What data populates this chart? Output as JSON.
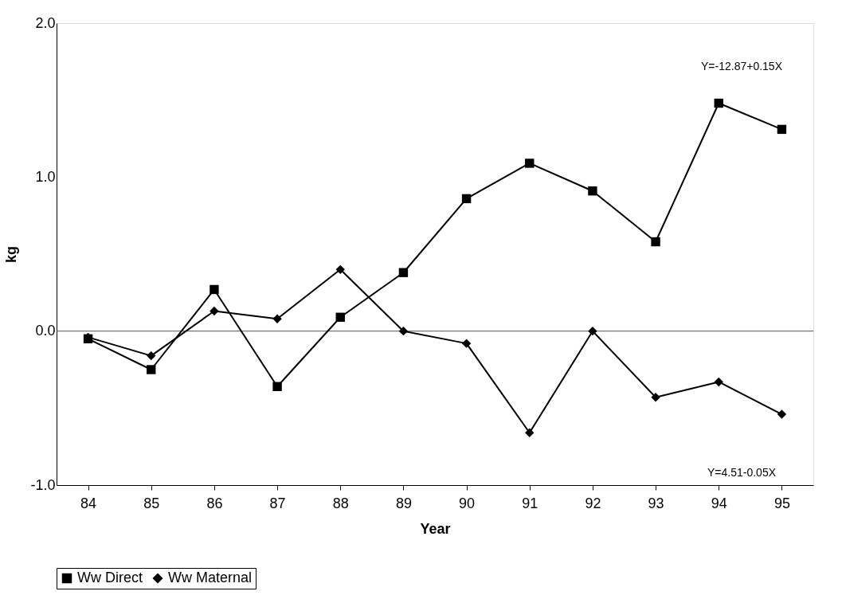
{
  "chart_data": {
    "type": "line",
    "xlabel": "Year",
    "ylabel": "kg",
    "categories": [
      "84",
      "85",
      "86",
      "87",
      "88",
      "89",
      "90",
      "91",
      "92",
      "93",
      "94",
      "95"
    ],
    "series": [
      {
        "name": "Ww Direct",
        "color": "#000000",
        "marker": "square",
        "values": [
          -0.05,
          -0.25,
          0.27,
          -0.36,
          0.09,
          0.38,
          0.86,
          1.09,
          0.91,
          0.58,
          1.48,
          1.31
        ]
      },
      {
        "name": "Ww Maternal",
        "color": "#000000",
        "marker": "diamond",
        "values": [
          -0.04,
          -0.16,
          0.13,
          0.08,
          0.4,
          0.0,
          -0.08,
          -0.66,
          0.0,
          -0.43,
          -0.33,
          -0.54
        ]
      }
    ],
    "ylim": [
      -1.0,
      2.0
    ],
    "yticks": [
      {
        "value": -1.0,
        "label": "-1.0"
      },
      {
        "value": 0.0,
        "label": "0.0"
      },
      {
        "value": 1.0,
        "label": "1.0"
      },
      {
        "value": 2.0,
        "label": "2.0"
      }
    ],
    "ref_lines": [
      {
        "axis": "y",
        "value": 0.0,
        "color": "#555555"
      }
    ],
    "annotations": [
      "Y=-12.87+0.15X",
      "Y=4.51-0.05X"
    ],
    "legend": "bottom",
    "grid": false,
    "line_style": "solid"
  }
}
